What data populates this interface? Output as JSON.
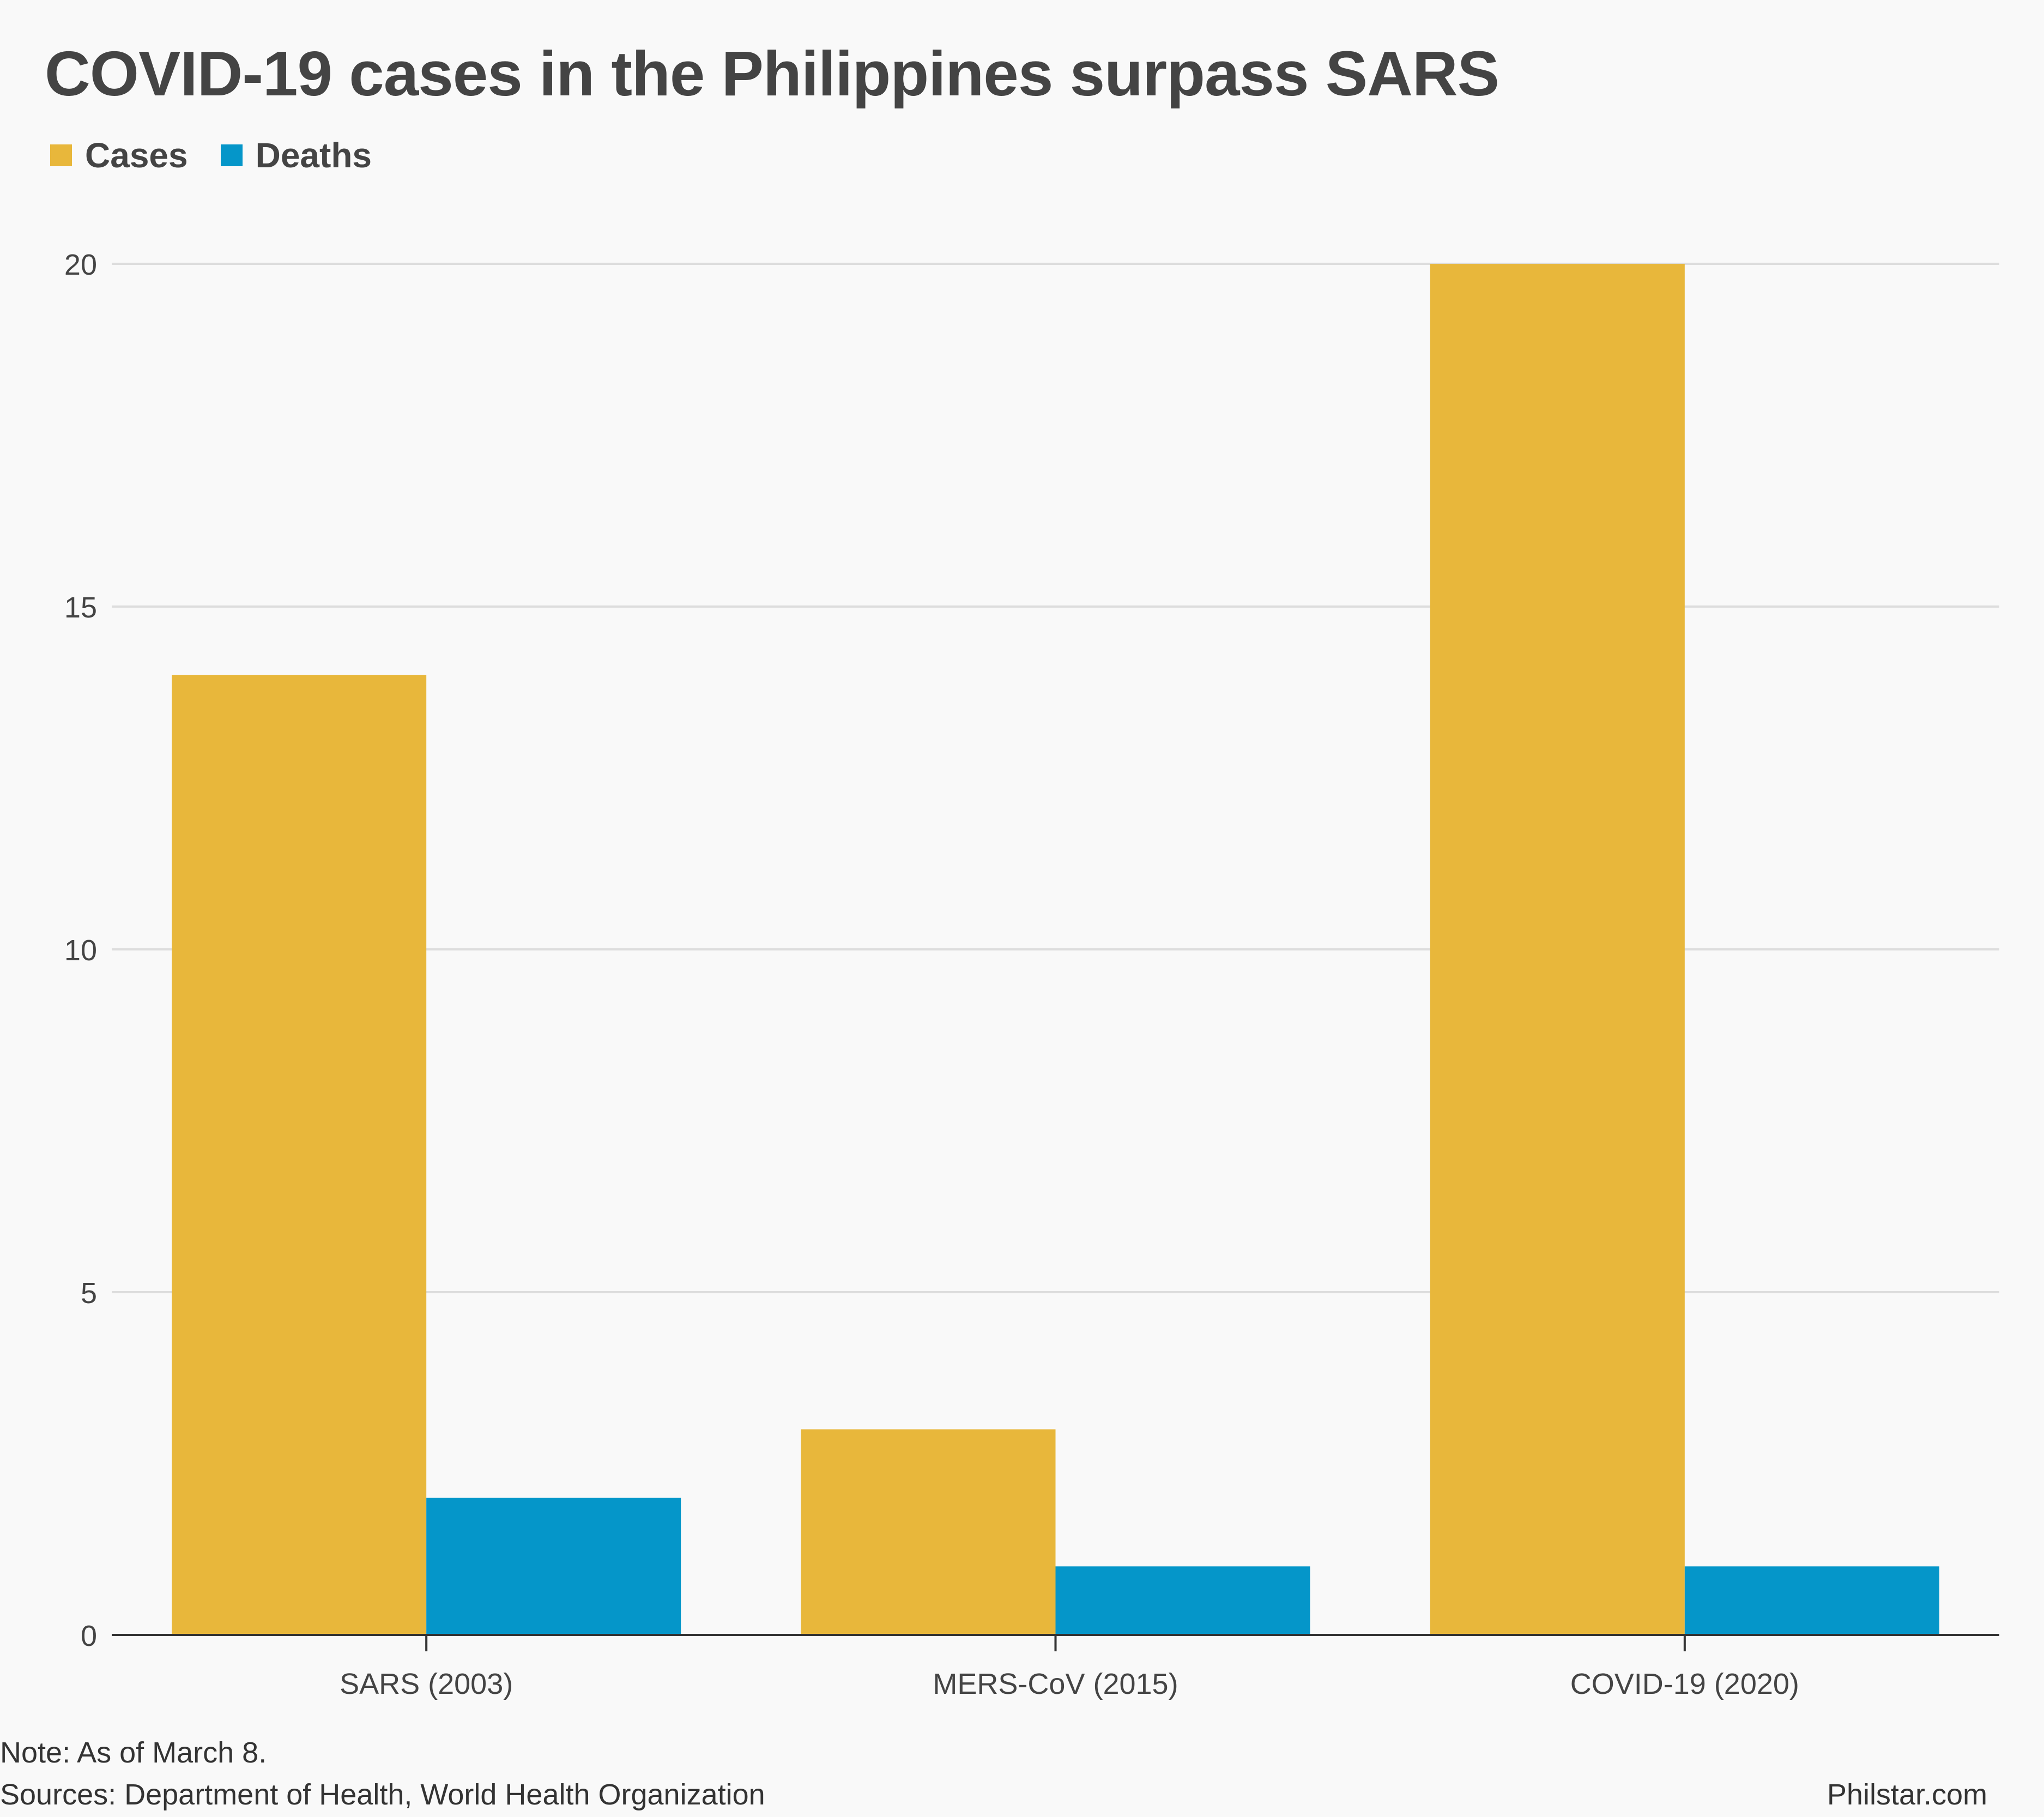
{
  "title": "COVID-19 cases in the Philippines surpass SARS",
  "legend": [
    {
      "label": "Cases",
      "color": "#e8b73b"
    },
    {
      "label": "Deaths",
      "color": "#0596c9"
    }
  ],
  "chart_data": {
    "type": "bar",
    "title": "COVID-19 cases in the Philippines surpass SARS",
    "categories": [
      "SARS (2003)",
      "MERS-CoV (2015)",
      "COVID-19 (2020)"
    ],
    "series": [
      {
        "name": "Cases",
        "color": "#e8b73b",
        "values": [
          14,
          3,
          20
        ]
      },
      {
        "name": "Deaths",
        "color": "#0596c9",
        "values": [
          2,
          1,
          1
        ]
      }
    ],
    "yticks": [
      "0",
      "5",
      "10",
      "15",
      "20"
    ],
    "ylim": [
      0,
      20
    ],
    "xlabel": "",
    "ylabel": "",
    "grid": true,
    "legend_position": "top-left"
  },
  "footer": {
    "note": "Note: As of March 8.",
    "sources": "Sources: Department of Health, World Health Organization",
    "brand": "Philstar.com"
  }
}
